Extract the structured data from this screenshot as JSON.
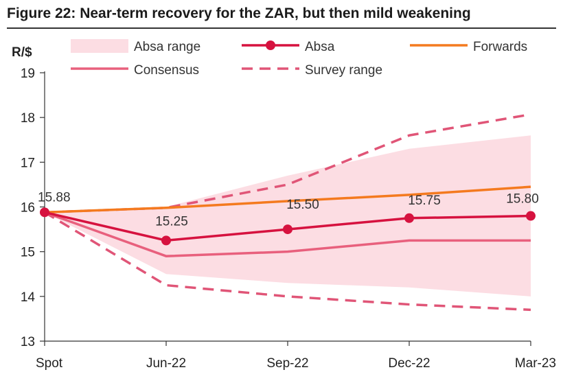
{
  "title": "Figure 22: Near-term recovery for the ZAR, but then mild weakening",
  "colors": {
    "absa": "#d6123f",
    "forwards": "#f47a1f",
    "consensus": "#e8607d",
    "survey": "#e05577",
    "range_fill": "#fcdde3",
    "axis": "#333333"
  },
  "chart_data": {
    "type": "line",
    "ylabel": "R/$",
    "ylim": [
      13,
      19
    ],
    "yticks": [
      13,
      14,
      15,
      16,
      17,
      18,
      19
    ],
    "categories": [
      "Spot",
      "Jun-22",
      "Sep-22",
      "Dec-22",
      "Mar-23"
    ],
    "legend": [
      "Absa range",
      "Absa",
      "Forwards",
      "Consensus",
      "Survey range"
    ],
    "absa_range": {
      "name": "Absa range",
      "upper": [
        15.88,
        16.0,
        16.7,
        17.3,
        17.6
      ],
      "lower": [
        15.88,
        14.5,
        14.3,
        14.2,
        14.0
      ]
    },
    "series": [
      {
        "name": "Absa",
        "values": [
          15.88,
          15.25,
          15.5,
          15.75,
          15.8
        ],
        "labels": [
          "15.88",
          "15.25",
          "15.50",
          "15.75",
          "15.80"
        ]
      },
      {
        "name": "Forwards",
        "values": [
          15.88,
          15.98,
          16.13,
          16.27,
          16.45
        ]
      },
      {
        "name": "Consensus",
        "values": [
          15.88,
          14.9,
          15.0,
          15.25,
          15.25
        ]
      },
      {
        "name": "Survey range upper",
        "values": [
          15.88,
          15.98,
          16.5,
          17.6,
          18.07
        ]
      },
      {
        "name": "Survey range lower",
        "values": [
          15.88,
          14.25,
          14.0,
          13.82,
          13.7
        ]
      }
    ]
  }
}
